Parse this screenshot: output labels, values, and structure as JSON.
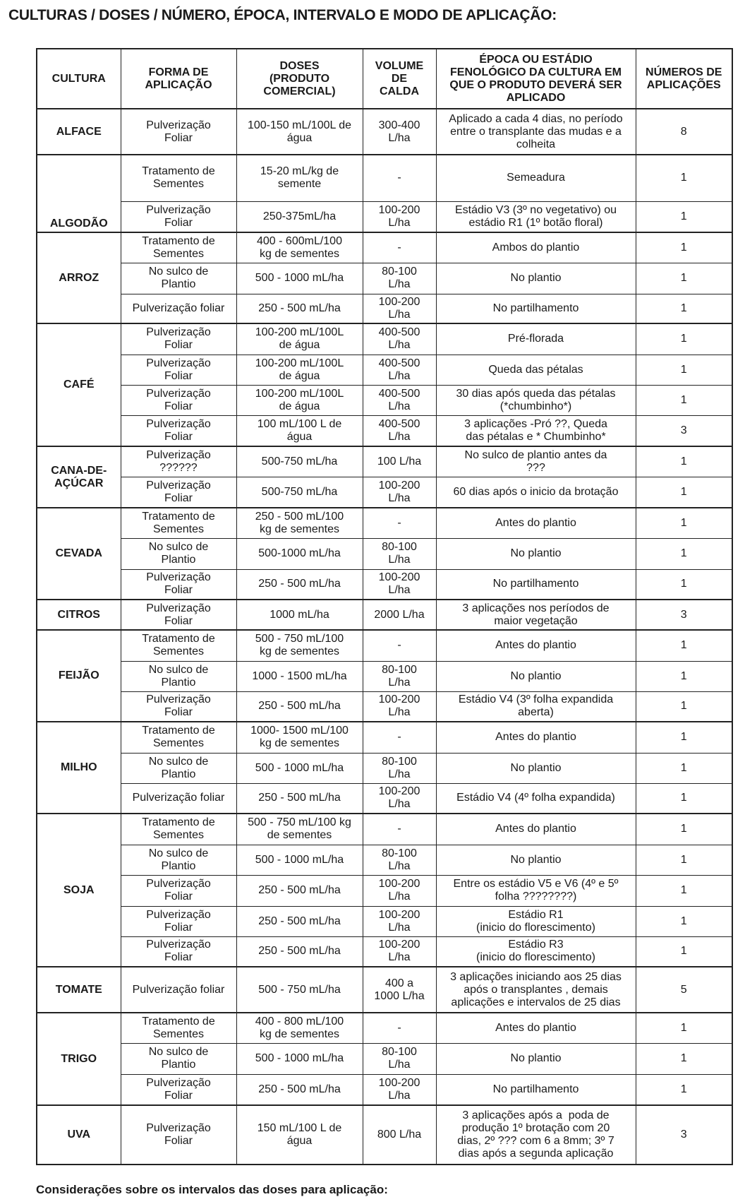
{
  "title": "CULTURAS / DOSES / NÚMERO, ÉPOCA, INTERVALO E MODO DE APLICAÇÃO:",
  "headers": [
    "CULTURA",
    "FORMA DE\nAPLICAÇÃO",
    "DOSES\n(PRODUTO\nCOMERCIAL)",
    "VOLUME\nDE\nCALDA",
    "ÉPOCA OU ESTÁDIO\nFENOLÓGICO DA CULTURA EM\nQUE O PRODUTO DEVERÁ SER\nAPLICADO",
    "NÚMEROS DE\nAPLICAÇÕES"
  ],
  "groups": [
    {
      "culture": "ALFACE",
      "rows": [
        [
          "Pulverização\nFoliar",
          "100-150 mL/100L de\nágua",
          "300-400\nL/ha",
          "Aplicado a cada 4 dias, no período\nentre o transplante das mudas e a\ncolheita",
          "8"
        ]
      ]
    },
    {
      "culture": "ALGODÃO",
      "rows": [
        [
          "Tratamento de\nSementes",
          "15-20 mL/kg de\nsemente",
          "-",
          "Semeadura",
          "1"
        ],
        [
          "Pulverização\nFoliar",
          "250-375mL/ha",
          "100-200\nL/ha",
          "Estádio V3 (3º no vegetativo) ou\nestádio R1 (1º botão floral)",
          "1"
        ]
      ]
    },
    {
      "culture": "ARROZ",
      "rows": [
        [
          "Tratamento de\nSementes",
          "400 - 600mL/100\nkg de sementes",
          "-",
          "Ambos do plantio",
          "1"
        ],
        [
          "No sulco de\nPlantio",
          "500 - 1000 mL/ha",
          "80-100\nL/ha",
          "No plantio",
          "1"
        ],
        [
          "Pulverização foliar",
          "250 - 500 mL/ha",
          "100-200\nL/ha",
          "No partilhamento",
          "1"
        ]
      ]
    },
    {
      "culture": "CAFÉ",
      "rows": [
        [
          "Pulverização\nFoliar",
          "100-200 mL/100L\nde água",
          "400-500\nL/ha",
          "Pré-florada",
          "1"
        ],
        [
          "Pulverização\nFoliar",
          "100-200 mL/100L\nde água",
          "400-500\nL/ha",
          "Queda das pétalas",
          "1"
        ],
        [
          "Pulverização\nFoliar",
          "100-200 mL/100L\nde água",
          "400-500\nL/ha",
          "30 dias após queda das pétalas\n(*chumbinho*)",
          "1"
        ],
        [
          "Pulverização\nFoliar",
          "100 mL/100 L de\nágua",
          "400-500\nL/ha",
          "3 aplicações -Pró ??, Queda\ndas pétalas e * Chumbinho*",
          "3"
        ]
      ]
    },
    {
      "culture": "CANA-DE-\nAÇÚCAR",
      "rows": [
        [
          "Pulverização\n??????",
          "500-750 mL/ha",
          "100 L/ha",
          "No sulco de plantio antes da\n???",
          "1"
        ],
        [
          "Pulverização\nFoliar",
          "500-750 mL/ha",
          "100-200\nL/ha",
          "60 dias após o inicio da brotação",
          "1"
        ]
      ]
    },
    {
      "culture": "CEVADA",
      "rows": [
        [
          "Tratamento de\nSementes",
          "250 - 500 mL/100\nkg de sementes",
          "-",
          "Antes do plantio",
          "1"
        ],
        [
          "No sulco de\nPlantio",
          "500-1000 mL/ha",
          "80-100\nL/ha",
          "No plantio",
          "1"
        ],
        [
          "Pulverização\nFoliar",
          "250 - 500 mL/ha",
          "100-200\nL/ha",
          "No partilhamento",
          "1"
        ]
      ]
    },
    {
      "culture": "CITROS",
      "rows": [
        [
          "Pulverização\nFoliar",
          "1000 mL/ha",
          "2000 L/ha",
          "3 aplicações nos períodos de\nmaior vegetação",
          "3"
        ]
      ]
    },
    {
      "culture": "FEIJÃO",
      "rows": [
        [
          "Tratamento de\nSementes",
          "500 - 750 mL/100\nkg de sementes",
          "-",
          "Antes do plantio",
          "1"
        ],
        [
          "No sulco de\nPlantio",
          "1000 - 1500 mL/ha",
          "80-100\nL/ha",
          "No plantio",
          "1"
        ],
        [
          "Pulverização\nFoliar",
          "250 - 500 mL/ha",
          "100-200\nL/ha",
          "Estádio V4 (3º folha expandida\naberta)",
          "1"
        ]
      ]
    },
    {
      "culture": "MILHO",
      "rows": [
        [
          "Tratamento de\nSementes",
          "1000- 1500 mL/100\nkg de sementes",
          "-",
          "Antes do plantio",
          "1"
        ],
        [
          "No sulco de\nPlantio",
          "500 - 1000 mL/ha",
          "80-100\nL/ha",
          "No plantio",
          "1"
        ],
        [
          "Pulverização foliar",
          "250 - 500 mL/ha",
          "100-200\nL/ha",
          "Estádio V4 (4º folha expandida)",
          "1"
        ]
      ]
    },
    {
      "culture": "SOJA",
      "rows": [
        [
          "Tratamento de\nSementes",
          "500 - 750 mL/100 kg\nde sementes",
          "-",
          "Antes do plantio",
          "1"
        ],
        [
          "No sulco de\nPlantio",
          "500 - 1000 mL/ha",
          "80-100\nL/ha",
          "No plantio",
          "1"
        ],
        [
          "Pulverização\nFoliar",
          "250 - 500 mL/ha",
          "100-200\nL/ha",
          "Entre os estádio V5 e V6 (4º e 5º\nfolha ????????)",
          "1"
        ],
        [
          "Pulverização\nFoliar",
          "250 - 500 mL/ha",
          "100-200\nL/ha",
          "Estádio R1\n(inicio do florescimento)",
          "1"
        ],
        [
          "Pulverização\nFoliar",
          "250 - 500 mL/ha",
          "100-200\nL/ha",
          "Estádio R3\n(inicio do florescimento)",
          "1"
        ]
      ]
    },
    {
      "culture": "TOMATE",
      "rows": [
        [
          "Pulverização foliar",
          "500 - 750 mL/ha",
          "400 a\n1000 L/ha",
          "3 aplicações iniciando aos 25 dias\napós o transplantes , demais\naplicações e intervalos de 25 dias",
          "5"
        ]
      ]
    },
    {
      "culture": "TRIGO",
      "rows": [
        [
          "Tratamento de\nSementes",
          "400 - 800 mL/100\nkg de sementes",
          "-",
          "Antes do plantio",
          "1"
        ],
        [
          "No sulco de\nPlantio",
          "500 - 1000 mL/ha",
          "80-100\nL/ha",
          "No plantio",
          "1"
        ],
        [
          "Pulverização\nFoliar",
          "250 - 500 mL/ha",
          "100-200\nL/ha",
          "No partilhamento",
          "1"
        ]
      ]
    },
    {
      "culture": "UVA",
      "rows": [
        [
          "Pulverização\nFoliar",
          "150 mL/100 L de\nágua",
          "800 L/ha",
          "3 aplicações após a  poda de\nprodução 1º brotação com 20\ndias, 2º ??? com 6 a 8mm; 3º 7\ndias após a segunda aplicação",
          "3"
        ]
      ]
    }
  ],
  "footer": "Considerações sobre os intervalos das doses para aplicação:"
}
